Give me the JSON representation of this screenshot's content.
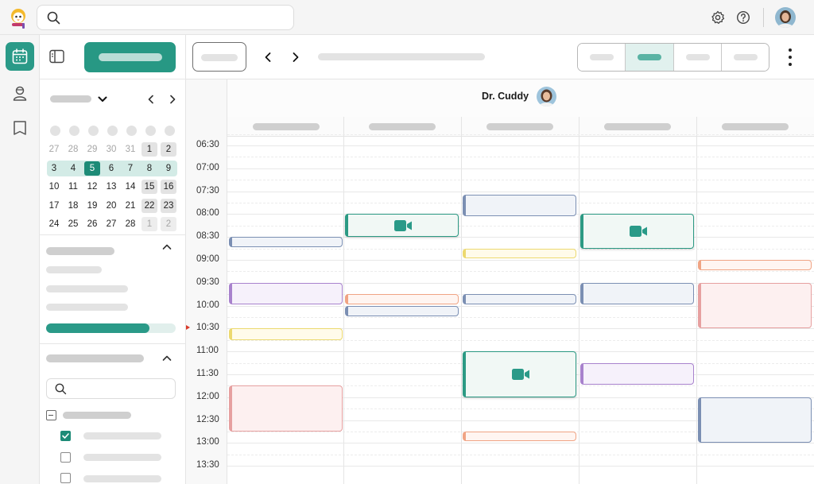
{
  "colors": {
    "brand": "#2a9a88",
    "brand_dark": "#1d8b77"
  },
  "topbar": {
    "logo_icon": "mascot-logo-icon",
    "search_icon": "search-icon",
    "settings_icon": "gear-icon",
    "help_icon": "help-circle-icon",
    "user_avatar": "user-avatar"
  },
  "rail": {
    "items": [
      {
        "icon": "calendar-icon",
        "active": true
      },
      {
        "icon": "person-icon",
        "active": false
      },
      {
        "icon": "book-icon",
        "active": false
      }
    ]
  },
  "mini_calendar": {
    "rows": [
      [
        {
          "d": "27",
          "m": true
        },
        {
          "d": "28",
          "m": true
        },
        {
          "d": "29",
          "m": true
        },
        {
          "d": "30",
          "m": true
        },
        {
          "d": "31",
          "m": true
        },
        {
          "d": "1",
          "b": true
        },
        {
          "d": "2",
          "b": true
        }
      ],
      [
        {
          "d": "3"
        },
        {
          "d": "4"
        },
        {
          "d": "5",
          "t": true
        },
        {
          "d": "6"
        },
        {
          "d": "7"
        },
        {
          "d": "8"
        },
        {
          "d": "9"
        }
      ],
      [
        {
          "d": "10"
        },
        {
          "d": "11"
        },
        {
          "d": "12"
        },
        {
          "d": "13"
        },
        {
          "d": "14"
        },
        {
          "d": "15",
          "b": true
        },
        {
          "d": "16",
          "b": true
        }
      ],
      [
        {
          "d": "17"
        },
        {
          "d": "18"
        },
        {
          "d": "19"
        },
        {
          "d": "20"
        },
        {
          "d": "21"
        },
        {
          "d": "22",
          "b": true
        },
        {
          "d": "23",
          "b": true
        }
      ],
      [
        {
          "d": "24"
        },
        {
          "d": "25"
        },
        {
          "d": "26"
        },
        {
          "d": "27"
        },
        {
          "d": "28"
        },
        {
          "d": "1",
          "b": true,
          "m": true
        },
        {
          "d": "2",
          "b": true,
          "m": true
        }
      ]
    ],
    "selected_week_row": 1
  },
  "sidebar": {
    "progress_fraction": 0.8,
    "checkboxes": [
      "indeterminate",
      "checked",
      "unchecked",
      "unchecked"
    ]
  },
  "calendar": {
    "doctor_name": "Dr. Cuddy",
    "time_labels": [
      "06:30",
      "07:00",
      "07:30",
      "08:00",
      "08:30",
      "09:00",
      "09:30",
      "10:00",
      "10:30",
      "11:00",
      "11:30",
      "12:00",
      "12:30",
      "13:00",
      "13:30"
    ],
    "now_time": "10:30",
    "events": [
      {
        "day": 0,
        "start": "08:30",
        "end": "08:43",
        "kind": "blue"
      },
      {
        "day": 0,
        "start": "09:30",
        "end": "09:58",
        "kind": "purple"
      },
      {
        "day": 0,
        "start": "10:30",
        "end": "10:45",
        "kind": "yellow"
      },
      {
        "day": 0,
        "start": "11:45",
        "end": "12:45",
        "kind": "red"
      },
      {
        "day": 1,
        "start": "08:00",
        "end": "08:30",
        "kind": "green",
        "video": true
      },
      {
        "day": 1,
        "start": "09:45",
        "end": "09:58",
        "kind": "orange"
      },
      {
        "day": 1,
        "start": "10:00",
        "end": "10:14",
        "kind": "blue"
      },
      {
        "day": 2,
        "start": "07:35",
        "end": "08:03",
        "kind": "blue"
      },
      {
        "day": 2,
        "start": "08:45",
        "end": "08:58",
        "kind": "yellow"
      },
      {
        "day": 2,
        "start": "09:45",
        "end": "09:58",
        "kind": "blue"
      },
      {
        "day": 2,
        "start": "11:00",
        "end": "12:00",
        "kind": "green",
        "video": true
      },
      {
        "day": 2,
        "start": "12:45",
        "end": "12:58",
        "kind": "orange"
      },
      {
        "day": 3,
        "start": "08:00",
        "end": "08:45",
        "kind": "green",
        "video": true
      },
      {
        "day": 3,
        "start": "09:30",
        "end": "09:58",
        "kind": "blue"
      },
      {
        "day": 3,
        "start": "11:15",
        "end": "11:44",
        "kind": "purple"
      },
      {
        "day": 4,
        "start": "09:00",
        "end": "09:14",
        "kind": "orange"
      },
      {
        "day": 4,
        "start": "09:30",
        "end": "10:30",
        "kind": "red"
      },
      {
        "day": 4,
        "start": "12:00",
        "end": "13:00",
        "kind": "blue"
      }
    ]
  }
}
